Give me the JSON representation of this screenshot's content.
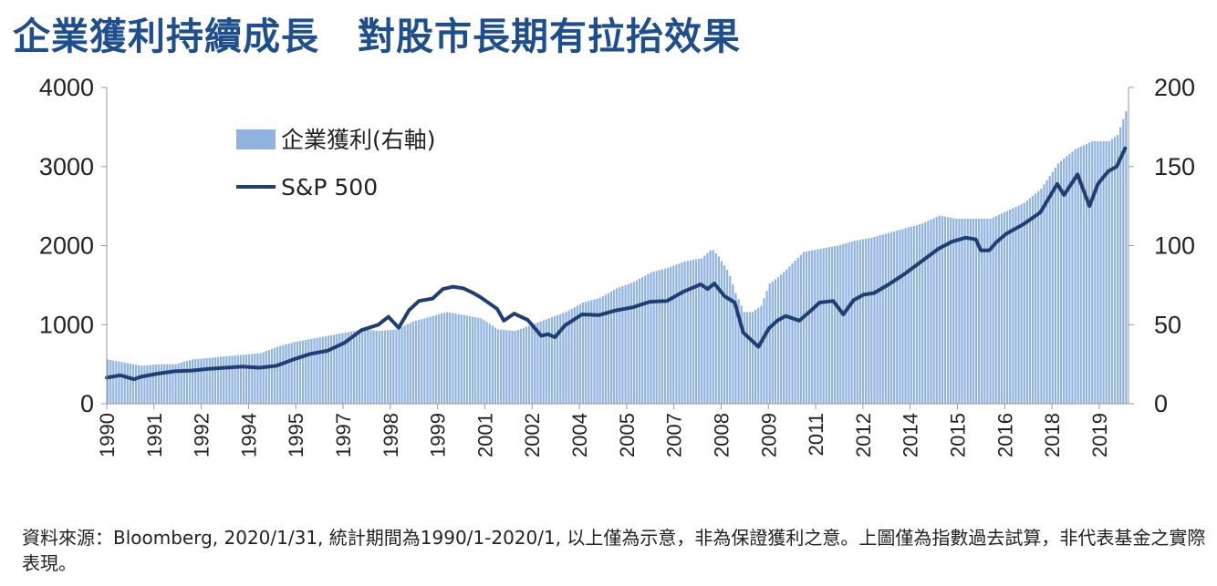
{
  "title": "企業獲利持續成長　對股市長期有拉抬效果",
  "source_note": "資料來源：Bloomberg, 2020/1/31, 統計期間為1990/1-2020/1, 以上僅為示意，非為保證獲利之意。上圖僅為指數過去試算，非代表基金之實際表現。",
  "colors": {
    "title": "#1f4e8c",
    "line": "#1f3f74",
    "bars": "#8fb2df"
  },
  "chart_data": {
    "type": "bar+line",
    "legend_position": "top-left",
    "grid": false,
    "x_range": [
      1990.0,
      2020.1
    ],
    "x_ticks": [
      "1990",
      "1991",
      "1992",
      "1994",
      "1995",
      "1997",
      "1998",
      "1999",
      "2001",
      "2002",
      "2004",
      "2005",
      "2007",
      "2008",
      "2009",
      "2011",
      "2012",
      "2014",
      "2015",
      "2016",
      "2018",
      "2019"
    ],
    "y_left": {
      "range": [
        0,
        4000
      ],
      "ticks": [
        "0",
        "1000",
        "2000",
        "3000",
        "4000"
      ]
    },
    "y_right": {
      "range": [
        0,
        200
      ],
      "ticks": [
        "0",
        "50",
        "100",
        "150",
        "200"
      ]
    },
    "series": [
      {
        "name": "企業獲利(右軸)",
        "type": "bar",
        "axis": "right",
        "points": [
          [
            1990.0,
            28
          ],
          [
            1990.5,
            26
          ],
          [
            1991.0,
            24
          ],
          [
            1991.5,
            25
          ],
          [
            1992.0,
            25
          ],
          [
            1992.5,
            28
          ],
          [
            1993.0,
            29
          ],
          [
            1993.5,
            30
          ],
          [
            1994.0,
            31
          ],
          [
            1994.5,
            32
          ],
          [
            1995.0,
            36
          ],
          [
            1995.5,
            39
          ],
          [
            1996.0,
            41
          ],
          [
            1996.5,
            43
          ],
          [
            1997.0,
            45
          ],
          [
            1997.5,
            47
          ],
          [
            1998.0,
            46
          ],
          [
            1998.5,
            47
          ],
          [
            1999.0,
            52
          ],
          [
            1999.5,
            55
          ],
          [
            2000.0,
            58
          ],
          [
            2000.5,
            56
          ],
          [
            2001.0,
            54
          ],
          [
            2001.5,
            47
          ],
          [
            2002.0,
            46
          ],
          [
            2002.5,
            50
          ],
          [
            2003.0,
            54
          ],
          [
            2003.5,
            58
          ],
          [
            2004.0,
            64
          ],
          [
            2004.5,
            67
          ],
          [
            2005.0,
            73
          ],
          [
            2005.5,
            77
          ],
          [
            2006.0,
            83
          ],
          [
            2006.5,
            86
          ],
          [
            2007.0,
            90
          ],
          [
            2007.5,
            92
          ],
          [
            2007.8,
            98
          ],
          [
            2008.0,
            93
          ],
          [
            2008.3,
            83
          ],
          [
            2008.5,
            70
          ],
          [
            2008.75,
            58
          ],
          [
            2009.0,
            58
          ],
          [
            2009.25,
            62
          ],
          [
            2009.5,
            76
          ],
          [
            2009.75,
            80
          ],
          [
            2010.0,
            85
          ],
          [
            2010.5,
            96
          ],
          [
            2011.0,
            98
          ],
          [
            2011.5,
            100
          ],
          [
            2012.0,
            103
          ],
          [
            2012.5,
            105
          ],
          [
            2013.0,
            108
          ],
          [
            2013.5,
            111
          ],
          [
            2014.0,
            114
          ],
          [
            2014.5,
            119
          ],
          [
            2015.0,
            117
          ],
          [
            2015.5,
            117
          ],
          [
            2016.0,
            117
          ],
          [
            2016.5,
            122
          ],
          [
            2017.0,
            127
          ],
          [
            2017.5,
            136
          ],
          [
            2018.0,
            152
          ],
          [
            2018.5,
            161
          ],
          [
            2019.0,
            166
          ],
          [
            2019.5,
            166
          ],
          [
            2019.75,
            170
          ],
          [
            2020.0,
            185
          ]
        ]
      },
      {
        "name": "S&P 500",
        "type": "line",
        "axis": "left",
        "points": [
          [
            1990.0,
            330
          ],
          [
            1990.4,
            360
          ],
          [
            1990.8,
            310
          ],
          [
            1991.0,
            340
          ],
          [
            1991.5,
            380
          ],
          [
            1992.0,
            410
          ],
          [
            1992.5,
            420
          ],
          [
            1993.0,
            440
          ],
          [
            1993.5,
            455
          ],
          [
            1994.0,
            470
          ],
          [
            1994.5,
            455
          ],
          [
            1995.0,
            480
          ],
          [
            1995.5,
            560
          ],
          [
            1996.0,
            630
          ],
          [
            1996.5,
            670
          ],
          [
            1997.0,
            770
          ],
          [
            1997.5,
            930
          ],
          [
            1998.0,
            1000
          ],
          [
            1998.3,
            1100
          ],
          [
            1998.6,
            960
          ],
          [
            1998.9,
            1180
          ],
          [
            1999.2,
            1300
          ],
          [
            1999.6,
            1330
          ],
          [
            1999.9,
            1450
          ],
          [
            2000.2,
            1480
          ],
          [
            2000.5,
            1460
          ],
          [
            2000.8,
            1400
          ],
          [
            2001.0,
            1350
          ],
          [
            2001.5,
            1200
          ],
          [
            2001.7,
            1050
          ],
          [
            2002.0,
            1140
          ],
          [
            2002.4,
            1060
          ],
          [
            2002.8,
            860
          ],
          [
            2003.0,
            880
          ],
          [
            2003.2,
            840
          ],
          [
            2003.5,
            990
          ],
          [
            2004.0,
            1130
          ],
          [
            2004.5,
            1120
          ],
          [
            2005.0,
            1180
          ],
          [
            2005.5,
            1220
          ],
          [
            2006.0,
            1290
          ],
          [
            2006.5,
            1300
          ],
          [
            2007.0,
            1420
          ],
          [
            2007.5,
            1510
          ],
          [
            2007.7,
            1450
          ],
          [
            2007.9,
            1520
          ],
          [
            2008.2,
            1360
          ],
          [
            2008.5,
            1280
          ],
          [
            2008.75,
            900
          ],
          [
            2009.0,
            800
          ],
          [
            2009.2,
            720
          ],
          [
            2009.5,
            950
          ],
          [
            2009.75,
            1050
          ],
          [
            2010.0,
            1110
          ],
          [
            2010.4,
            1050
          ],
          [
            2010.75,
            1180
          ],
          [
            2011.0,
            1280
          ],
          [
            2011.4,
            1300
          ],
          [
            2011.7,
            1130
          ],
          [
            2012.0,
            1310
          ],
          [
            2012.3,
            1380
          ],
          [
            2012.6,
            1400
          ],
          [
            2013.0,
            1500
          ],
          [
            2013.5,
            1640
          ],
          [
            2014.0,
            1800
          ],
          [
            2014.5,
            1960
          ],
          [
            2014.9,
            2050
          ],
          [
            2015.3,
            2100
          ],
          [
            2015.6,
            2080
          ],
          [
            2015.75,
            1940
          ],
          [
            2016.0,
            1940
          ],
          [
            2016.2,
            2040
          ],
          [
            2016.5,
            2150
          ],
          [
            2017.0,
            2270
          ],
          [
            2017.5,
            2420
          ],
          [
            2018.0,
            2780
          ],
          [
            2018.2,
            2640
          ],
          [
            2018.6,
            2900
          ],
          [
            2018.95,
            2500
          ],
          [
            2019.2,
            2780
          ],
          [
            2019.5,
            2940
          ],
          [
            2019.75,
            3000
          ],
          [
            2020.0,
            3230
          ]
        ]
      }
    ]
  }
}
